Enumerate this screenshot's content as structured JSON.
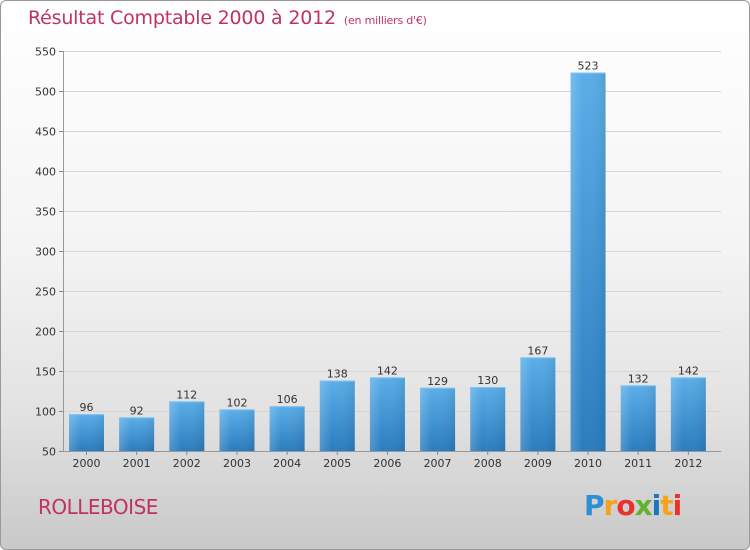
{
  "header": {
    "title": "Résultat Comptable 2000 à 2012",
    "unit": "(en milliers d'€)"
  },
  "footer": {
    "city": "ROLLEBOISE",
    "logo": "Proxiti"
  },
  "colors": {
    "title": "#c0335f",
    "bar_top": "#5aaee9",
    "bar_bottom": "#2a7cbf"
  },
  "chart_data": {
    "type": "bar",
    "title": "Résultat Comptable 2000 à 2012",
    "subtitle": "(en milliers d'€)",
    "xlabel": "",
    "ylabel": "",
    "categories": [
      "2000",
      "2001",
      "2002",
      "2003",
      "2004",
      "2005",
      "2006",
      "2007",
      "2008",
      "2009",
      "2010",
      "2011",
      "2012"
    ],
    "values": [
      96,
      92,
      112,
      102,
      106,
      138,
      142,
      129,
      130,
      167,
      523,
      132,
      142
    ],
    "ylim": [
      50,
      550
    ],
    "yticks": [
      50,
      100,
      150,
      200,
      250,
      300,
      350,
      400,
      450,
      500,
      550
    ],
    "grid": true,
    "legend": "none"
  }
}
